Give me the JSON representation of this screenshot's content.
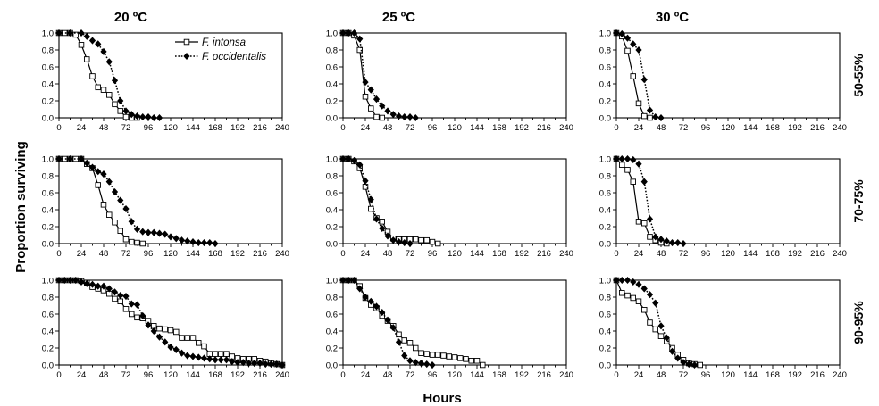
{
  "chart_data": {
    "type": "line",
    "ylabel": "Proportion surviving",
    "xlabel": "Hours",
    "col_titles": [
      "20 ºC",
      "25 ºC",
      "30 ºC"
    ],
    "row_labels": [
      "50-55%",
      "70-75%",
      "90-95%"
    ],
    "xlim": [
      0,
      240
    ],
    "ylim": [
      0,
      1
    ],
    "x_ticks": [
      0,
      12,
      24,
      36,
      48,
      60,
      72,
      84,
      96,
      108,
      120,
      132,
      144,
      156,
      168,
      180,
      192,
      204,
      216,
      228,
      240
    ],
    "x_tick_labels": [
      "0",
      "24",
      "48",
      "72",
      "96",
      "120",
      "144",
      "168",
      "192",
      "216",
      "240"
    ],
    "y_tick_labels": [
      "0.0",
      "0.2",
      "0.4",
      "0.6",
      "0.8",
      "1.0"
    ],
    "grid": false,
    "legend": {
      "position": "top-right of first panel",
      "entries": [
        "F. intonsa",
        "F. occidentalis"
      ]
    },
    "series_styles": {
      "F. intonsa": {
        "line": "solid",
        "marker": "open-square",
        "color": "#000000"
      },
      "F. occidentalis": {
        "line": "dotted",
        "marker": "filled-diamond",
        "color": "#000000"
      }
    },
    "panels": [
      {
        "row": 0,
        "col": 0,
        "series": [
          {
            "name": "F. intonsa",
            "x": [
              0,
              6,
              12,
              18,
              24,
              30,
              36,
              42,
              48,
              54,
              60,
              66,
              72,
              78,
              84
            ],
            "y": [
              1,
              1,
              1,
              0.98,
              0.86,
              0.69,
              0.49,
              0.36,
              0.33,
              0.27,
              0.16,
              0.08,
              0.01,
              0,
              0
            ]
          },
          {
            "name": "F. occidentalis",
            "x": [
              0,
              12,
              24,
              30,
              36,
              42,
              48,
              54,
              60,
              66,
              72,
              78,
              84,
              90,
              96,
              102,
              108
            ],
            "y": [
              1,
              1,
              1,
              0.96,
              0.91,
              0.87,
              0.78,
              0.66,
              0.44,
              0.2,
              0.08,
              0.04,
              0.02,
              0.01,
              0.01,
              0,
              0
            ]
          }
        ]
      },
      {
        "row": 0,
        "col": 1,
        "series": [
          {
            "name": "F. intonsa",
            "x": [
              0,
              6,
              12,
              18,
              24,
              30,
              36,
              42
            ],
            "y": [
              1,
              1,
              0.97,
              0.8,
              0.25,
              0.11,
              0.01,
              0
            ]
          },
          {
            "name": "F. occidentalis",
            "x": [
              0,
              6,
              12,
              18,
              24,
              30,
              36,
              42,
              48,
              54,
              60,
              66,
              72,
              78
            ],
            "y": [
              1,
              1,
              1,
              0.93,
              0.42,
              0.33,
              0.22,
              0.14,
              0.08,
              0.04,
              0.02,
              0.01,
              0.01,
              0
            ]
          }
        ]
      },
      {
        "row": 1,
        "col": 0,
        "series": [
          {
            "name": "F. intonsa",
            "x": [
              0,
              6,
              12,
              18,
              24,
              30,
              36,
              42,
              48,
              54,
              60,
              66,
              72,
              78,
              84,
              90
            ],
            "y": [
              1,
              1,
              1,
              1,
              1,
              0.94,
              0.89,
              0.69,
              0.46,
              0.34,
              0.25,
              0.15,
              0.05,
              0.02,
              0.01,
              0
            ]
          },
          {
            "name": "F. occidentalis",
            "x": [
              0,
              12,
              24,
              30,
              36,
              42,
              48,
              54,
              60,
              66,
              72,
              78,
              84,
              90,
              96,
              102,
              108,
              114,
              120,
              126,
              132,
              138,
              144,
              150,
              156,
              162,
              168
            ],
            "y": [
              1,
              1,
              1,
              0.95,
              0.9,
              0.85,
              0.82,
              0.73,
              0.61,
              0.51,
              0.41,
              0.26,
              0.17,
              0.14,
              0.13,
              0.13,
              0.12,
              0.11,
              0.08,
              0.06,
              0.04,
              0.03,
              0.02,
              0.01,
              0.01,
              0.01,
              0
            ]
          }
        ]
      },
      {
        "row": 1,
        "col": 1,
        "series": [
          {
            "name": "F. intonsa",
            "x": [
              0,
              6,
              12,
              18,
              24,
              30,
              36,
              42,
              48,
              54,
              60,
              66,
              72,
              78,
              84,
              90,
              96,
              102
            ],
            "y": [
              1,
              1,
              0.97,
              0.89,
              0.67,
              0.41,
              0.3,
              0.26,
              0.14,
              0.06,
              0.05,
              0.05,
              0.05,
              0.05,
              0.04,
              0.04,
              0.02,
              0
            ]
          },
          {
            "name": "F. occidentalis",
            "x": [
              0,
              6,
              12,
              18,
              24,
              30,
              36,
              42,
              48,
              54,
              60,
              66,
              72
            ],
            "y": [
              1,
              1,
              0.98,
              0.93,
              0.74,
              0.52,
              0.29,
              0.18,
              0.09,
              0.04,
              0.02,
              0.01,
              0
            ]
          }
        ]
      },
      {
        "row": 2,
        "col": 0,
        "series": [
          {
            "name": "F. intonsa",
            "x": [
              0,
              6,
              12,
              18,
              24,
              30,
              36,
              42,
              48,
              54,
              60,
              66,
              72,
              78,
              84,
              90,
              96,
              102,
              108,
              114,
              120,
              126,
              132,
              138,
              144,
              150,
              156,
              162,
              168,
              174,
              180,
              186,
              192,
              198,
              204,
              210,
              216,
              222,
              228,
              234,
              240
            ],
            "y": [
              1,
              1,
              1,
              1,
              0.99,
              0.97,
              0.92,
              0.9,
              0.88,
              0.84,
              0.78,
              0.75,
              0.66,
              0.6,
              0.56,
              0.55,
              0.52,
              0.46,
              0.43,
              0.42,
              0.41,
              0.39,
              0.32,
              0.32,
              0.32,
              0.26,
              0.22,
              0.13,
              0.13,
              0.13,
              0.13,
              0.1,
              0.08,
              0.07,
              0.07,
              0.07,
              0.05,
              0.04,
              0.02,
              0.01,
              0
            ]
          },
          {
            "name": "F. occidentalis",
            "x": [
              0,
              6,
              12,
              18,
              24,
              30,
              36,
              42,
              48,
              54,
              60,
              66,
              72,
              78,
              84,
              90,
              96,
              102,
              108,
              114,
              120,
              126,
              132,
              138,
              144,
              150,
              156,
              162,
              168,
              174,
              180,
              186,
              192,
              198,
              204,
              210,
              216,
              222,
              228,
              234,
              240
            ],
            "y": [
              1,
              1,
              1,
              1,
              0.98,
              0.96,
              0.95,
              0.93,
              0.93,
              0.9,
              0.86,
              0.82,
              0.81,
              0.72,
              0.71,
              0.58,
              0.47,
              0.4,
              0.33,
              0.27,
              0.21,
              0.18,
              0.14,
              0.11,
              0.1,
              0.09,
              0.08,
              0.07,
              0.06,
              0.06,
              0.06,
              0.04,
              0.03,
              0.03,
              0.02,
              0.02,
              0.02,
              0.01,
              0.01,
              0.01,
              0
            ]
          }
        ]
      },
      {
        "row": 2,
        "col": 1,
        "series": [
          {
            "name": "F. intonsa",
            "x": [
              0,
              6,
              12,
              18,
              24,
              30,
              36,
              42,
              48,
              54,
              60,
              66,
              72,
              78,
              84,
              90,
              96,
              102,
              108,
              114,
              120,
              126,
              132,
              138,
              144,
              150
            ],
            "y": [
              1,
              1,
              1,
              0.93,
              0.79,
              0.71,
              0.67,
              0.58,
              0.52,
              0.46,
              0.36,
              0.29,
              0.26,
              0.2,
              0.14,
              0.13,
              0.12,
              0.12,
              0.11,
              0.1,
              0.09,
              0.08,
              0.07,
              0.05,
              0.05,
              0
            ]
          },
          {
            "name": "F. occidentalis",
            "x": [
              0,
              6,
              12,
              18,
              24,
              30,
              36,
              42,
              48,
              54,
              60,
              66,
              72,
              78,
              84,
              90,
              96
            ],
            "y": [
              1,
              1,
              1,
              0.9,
              0.8,
              0.75,
              0.69,
              0.62,
              0.53,
              0.44,
              0.27,
              0.11,
              0.05,
              0.03,
              0.02,
              0.01,
              0
            ]
          }
        ]
      },
      {
        "row": 0,
        "col": 2,
        "series": [
          {
            "name": "F. intonsa",
            "x": [
              0,
              6,
              12,
              18,
              24,
              30,
              36
            ],
            "y": [
              1,
              0.96,
              0.79,
              0.49,
              0.17,
              0.02,
              0
            ]
          },
          {
            "name": "F. occidentalis",
            "x": [
              0,
              6,
              12,
              18,
              24,
              30,
              36,
              42,
              48
            ],
            "y": [
              1,
              0.99,
              0.94,
              0.87,
              0.8,
              0.45,
              0.09,
              0.01,
              0
            ]
          }
        ]
      },
      {
        "row": 1,
        "col": 2,
        "series": [
          {
            "name": "F. intonsa",
            "x": [
              0,
              6,
              12,
              18,
              24,
              30,
              36,
              42,
              48,
              54
            ],
            "y": [
              1,
              0.93,
              0.87,
              0.73,
              0.26,
              0.24,
              0.08,
              0.04,
              0.01,
              0
            ]
          },
          {
            "name": "F. occidentalis",
            "x": [
              0,
              6,
              12,
              18,
              24,
              30,
              36,
              42,
              48,
              54,
              60,
              66,
              72
            ],
            "y": [
              1,
              1,
              1,
              0.99,
              0.94,
              0.73,
              0.29,
              0.08,
              0.05,
              0.03,
              0.01,
              0.01,
              0
            ]
          }
        ]
      },
      {
        "row": 2,
        "col": 2,
        "series": [
          {
            "name": "F. intonsa",
            "x": [
              0,
              6,
              12,
              18,
              24,
              30,
              36,
              42,
              48,
              54,
              60,
              66,
              72,
              78,
              84,
              90
            ],
            "y": [
              1,
              0.85,
              0.82,
              0.79,
              0.75,
              0.65,
              0.5,
              0.42,
              0.34,
              0.28,
              0.2,
              0.12,
              0.06,
              0.02,
              0.01,
              0
            ]
          },
          {
            "name": "F. occidentalis",
            "x": [
              0,
              6,
              12,
              18,
              24,
              30,
              36,
              42,
              48,
              54,
              60,
              66,
              72,
              78,
              84
            ],
            "y": [
              1,
              1,
              1,
              0.98,
              0.95,
              0.9,
              0.83,
              0.73,
              0.46,
              0.32,
              0.16,
              0.08,
              0.03,
              0.01,
              0
            ]
          }
        ]
      }
    ]
  }
}
